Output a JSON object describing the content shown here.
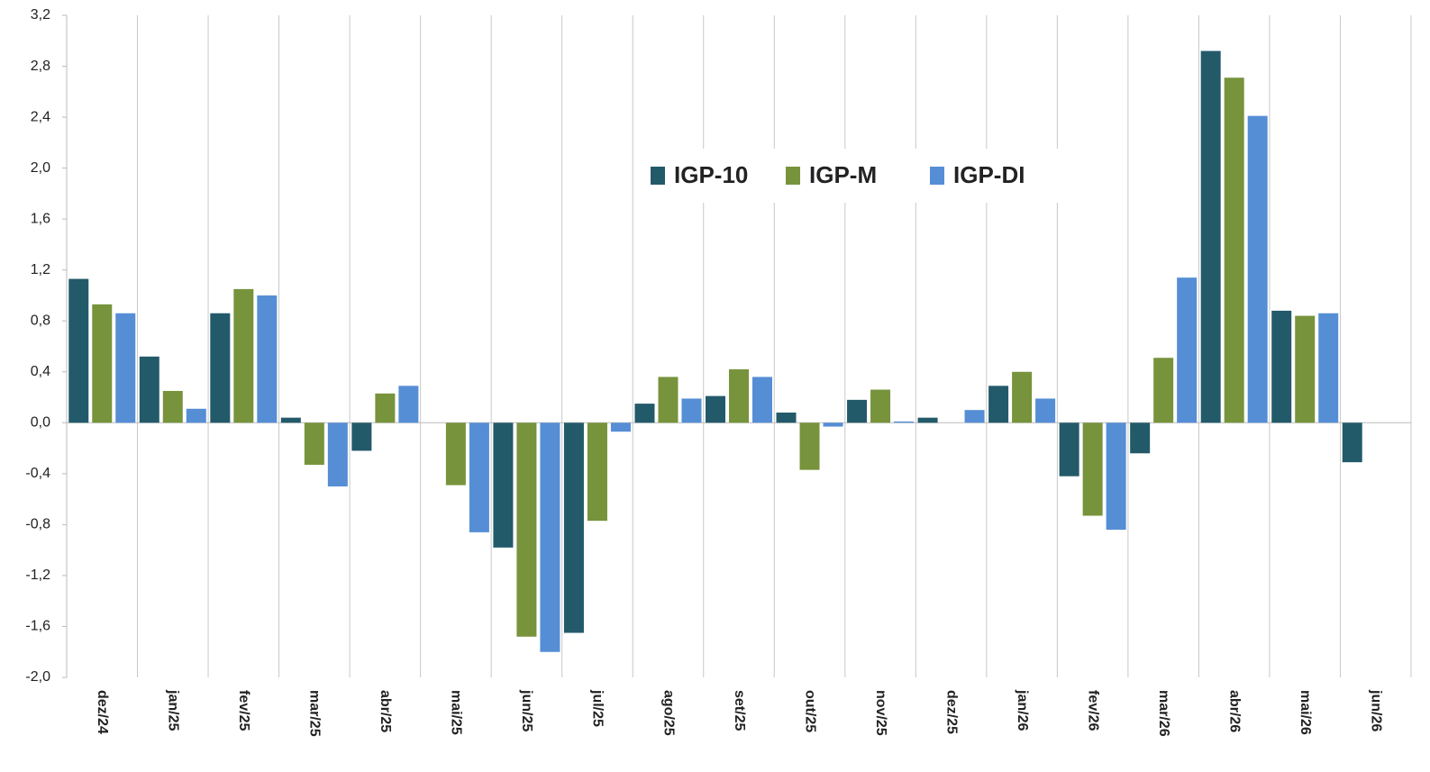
{
  "chart_data": {
    "type": "bar",
    "categories": [
      "dez/24",
      "jan/25",
      "fev/25",
      "mar/25",
      "abr/25",
      "mai/25",
      "jun/25",
      "jul/25",
      "ago/25",
      "set/25",
      "out/25",
      "nov/25",
      "dez/25",
      "jan/26",
      "fev/26",
      "mar/26",
      "abr/26",
      "mai/26",
      "jun/26"
    ],
    "series": [
      {
        "name": "IGP-10",
        "color": "#235a6a",
        "values": [
          1.13,
          0.52,
          0.86,
          0.04,
          -0.22,
          null,
          -0.98,
          -1.65,
          0.15,
          0.21,
          0.08,
          0.18,
          0.04,
          0.29,
          -0.42,
          -0.24,
          2.92,
          0.88,
          -0.31
        ]
      },
      {
        "name": "IGP-M",
        "color": "#77933c",
        "values": [
          0.93,
          0.25,
          1.05,
          -0.33,
          0.23,
          -0.49,
          -1.68,
          -0.77,
          0.36,
          0.42,
          -0.37,
          0.26,
          null,
          0.4,
          -0.73,
          0.51,
          2.71,
          0.84,
          null
        ]
      },
      {
        "name": "IGP-DI",
        "color": "#558ed5",
        "values": [
          0.86,
          0.11,
          1.0,
          -0.5,
          0.29,
          -0.86,
          -1.8,
          -0.07,
          0.19,
          0.36,
          -0.03,
          0.01,
          0.1,
          0.19,
          -0.84,
          1.14,
          2.41,
          0.86,
          null
        ]
      }
    ],
    "ylim": [
      -2.0,
      3.2
    ],
    "yticks": [
      {
        "value": -2.0,
        "label": "-2,0"
      },
      {
        "value": -1.6,
        "label": "-1,6"
      },
      {
        "value": -1.2,
        "label": "-1,2"
      },
      {
        "value": -0.8,
        "label": "-0,8"
      },
      {
        "value": -0.4,
        "label": "-0,4"
      },
      {
        "value": 0,
        "label": "0,0"
      },
      {
        "value": 0.4,
        "label": "0,4"
      },
      {
        "value": 0.8,
        "label": "0,8"
      },
      {
        "value": 1.2,
        "label": "1,2"
      },
      {
        "value": 1.6,
        "label": "1,6"
      },
      {
        "value": 2.0,
        "label": "2,0"
      },
      {
        "value": 2.4,
        "label": "2,4"
      },
      {
        "value": 2.8,
        "label": "2,8"
      },
      {
        "value": 3.2,
        "label": "3,2"
      }
    ],
    "grid": true
  }
}
